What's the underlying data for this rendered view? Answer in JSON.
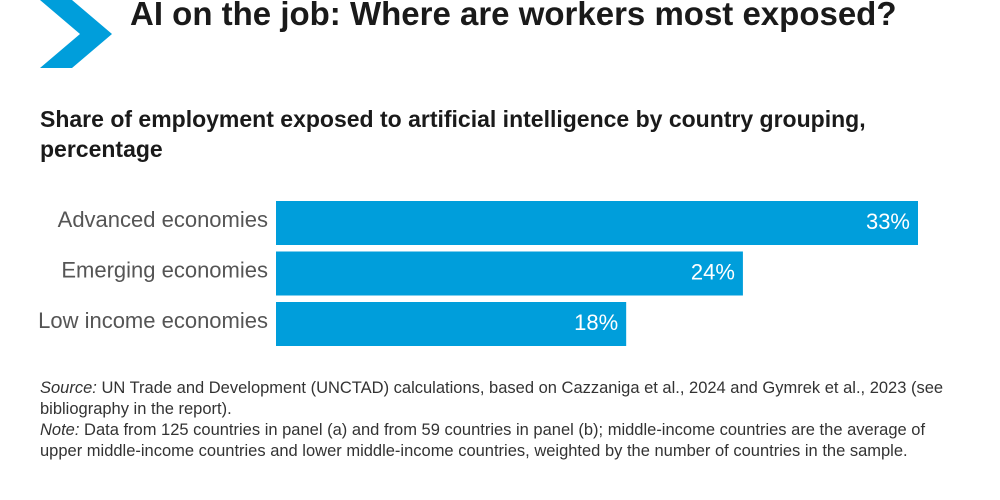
{
  "header": {
    "title": "AI on the job: Where are workers most exposed?",
    "chevron_icon": "chevron-right-icon",
    "accent_color": "#009EDB"
  },
  "chart_data": {
    "type": "bar",
    "orientation": "horizontal",
    "title": "Share of employment exposed to artificial intelligence by country grouping, percentage",
    "categories": [
      "Advanced economies",
      "Emerging economies",
      "Low income economies"
    ],
    "values": [
      33,
      24,
      18
    ],
    "value_labels": [
      "33%",
      "24%",
      "18%"
    ],
    "xlim": [
      0,
      33
    ],
    "grid": false,
    "bar_color": "#009EDB"
  },
  "notes": {
    "source_label": "Source:",
    "source_text": " UN Trade and Development (UNCTAD) calculations, based on Cazzaniga et al., 2024 and Gymrek et al., 2023 (see bibliography in the report).",
    "note_label": "Note:",
    "note_text": " Data from 125 countries in panel (a) and from 59 countries in panel (b); middle-income countries are the average of upper middle-income countries and lower middle-income countries, weighted by the number of countries in the sample."
  }
}
